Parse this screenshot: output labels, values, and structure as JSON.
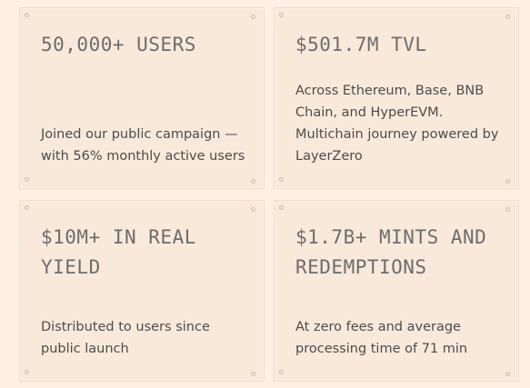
{
  "stats": [
    {
      "headline": "50,000+ USERS",
      "description": "Joined our public campaign — with 56% monthly active users"
    },
    {
      "headline": "$501.7M TVL",
      "description": "Across Ethereum, Base, BNB Chain, and HyperEVM. Multichain journey powered by LayerZero"
    },
    {
      "headline": "$10M+ IN REAL YIELD",
      "description": "Distributed to users since public launch"
    },
    {
      "headline": "$1.7B+ MINTS AND REDEMPTIONS",
      "description": "At zero fees and average processing time of 71 min"
    }
  ]
}
